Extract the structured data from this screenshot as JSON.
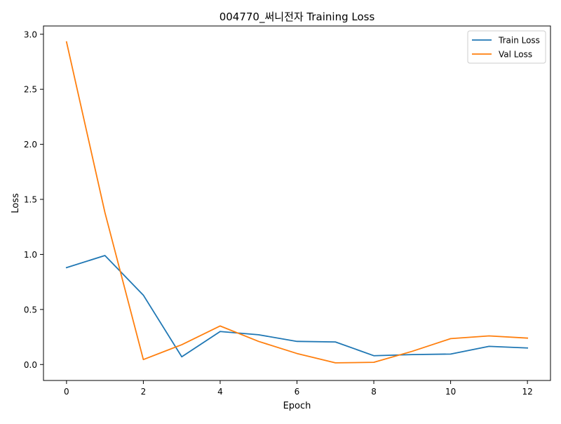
{
  "chart_data": {
    "type": "line",
    "title": "004770_써니전자 Training Loss",
    "xlabel": "Epoch",
    "ylabel": "Loss",
    "xlim": [
      -0.6,
      12.6
    ],
    "ylim": [
      -0.145,
      3.075
    ],
    "xticks": [
      0,
      2,
      4,
      6,
      8,
      10,
      12
    ],
    "yticks": [
      0.0,
      0.5,
      1.0,
      1.5,
      2.0,
      2.5,
      3.0
    ],
    "xtick_labels": [
      "0",
      "2",
      "4",
      "6",
      "8",
      "10",
      "12"
    ],
    "ytick_labels": [
      "0.0",
      "0.5",
      "1.0",
      "1.5",
      "2.0",
      "2.5",
      "3.0"
    ],
    "grid": false,
    "legend_position": "top-right",
    "x": [
      0,
      1,
      2,
      3,
      4,
      5,
      6,
      7,
      8,
      9,
      10,
      11,
      12
    ],
    "series": [
      {
        "name": "Train Loss",
        "color": "#1f77b4",
        "values": [
          0.88,
          0.99,
          0.63,
          0.07,
          0.3,
          0.27,
          0.21,
          0.205,
          0.08,
          0.09,
          0.095,
          0.165,
          0.15
        ]
      },
      {
        "name": "Val Loss",
        "color": "#ff7f0e",
        "values": [
          2.93,
          1.38,
          0.045,
          0.18,
          0.35,
          0.21,
          0.1,
          0.015,
          0.02,
          0.12,
          0.235,
          0.26,
          0.24
        ]
      }
    ]
  }
}
